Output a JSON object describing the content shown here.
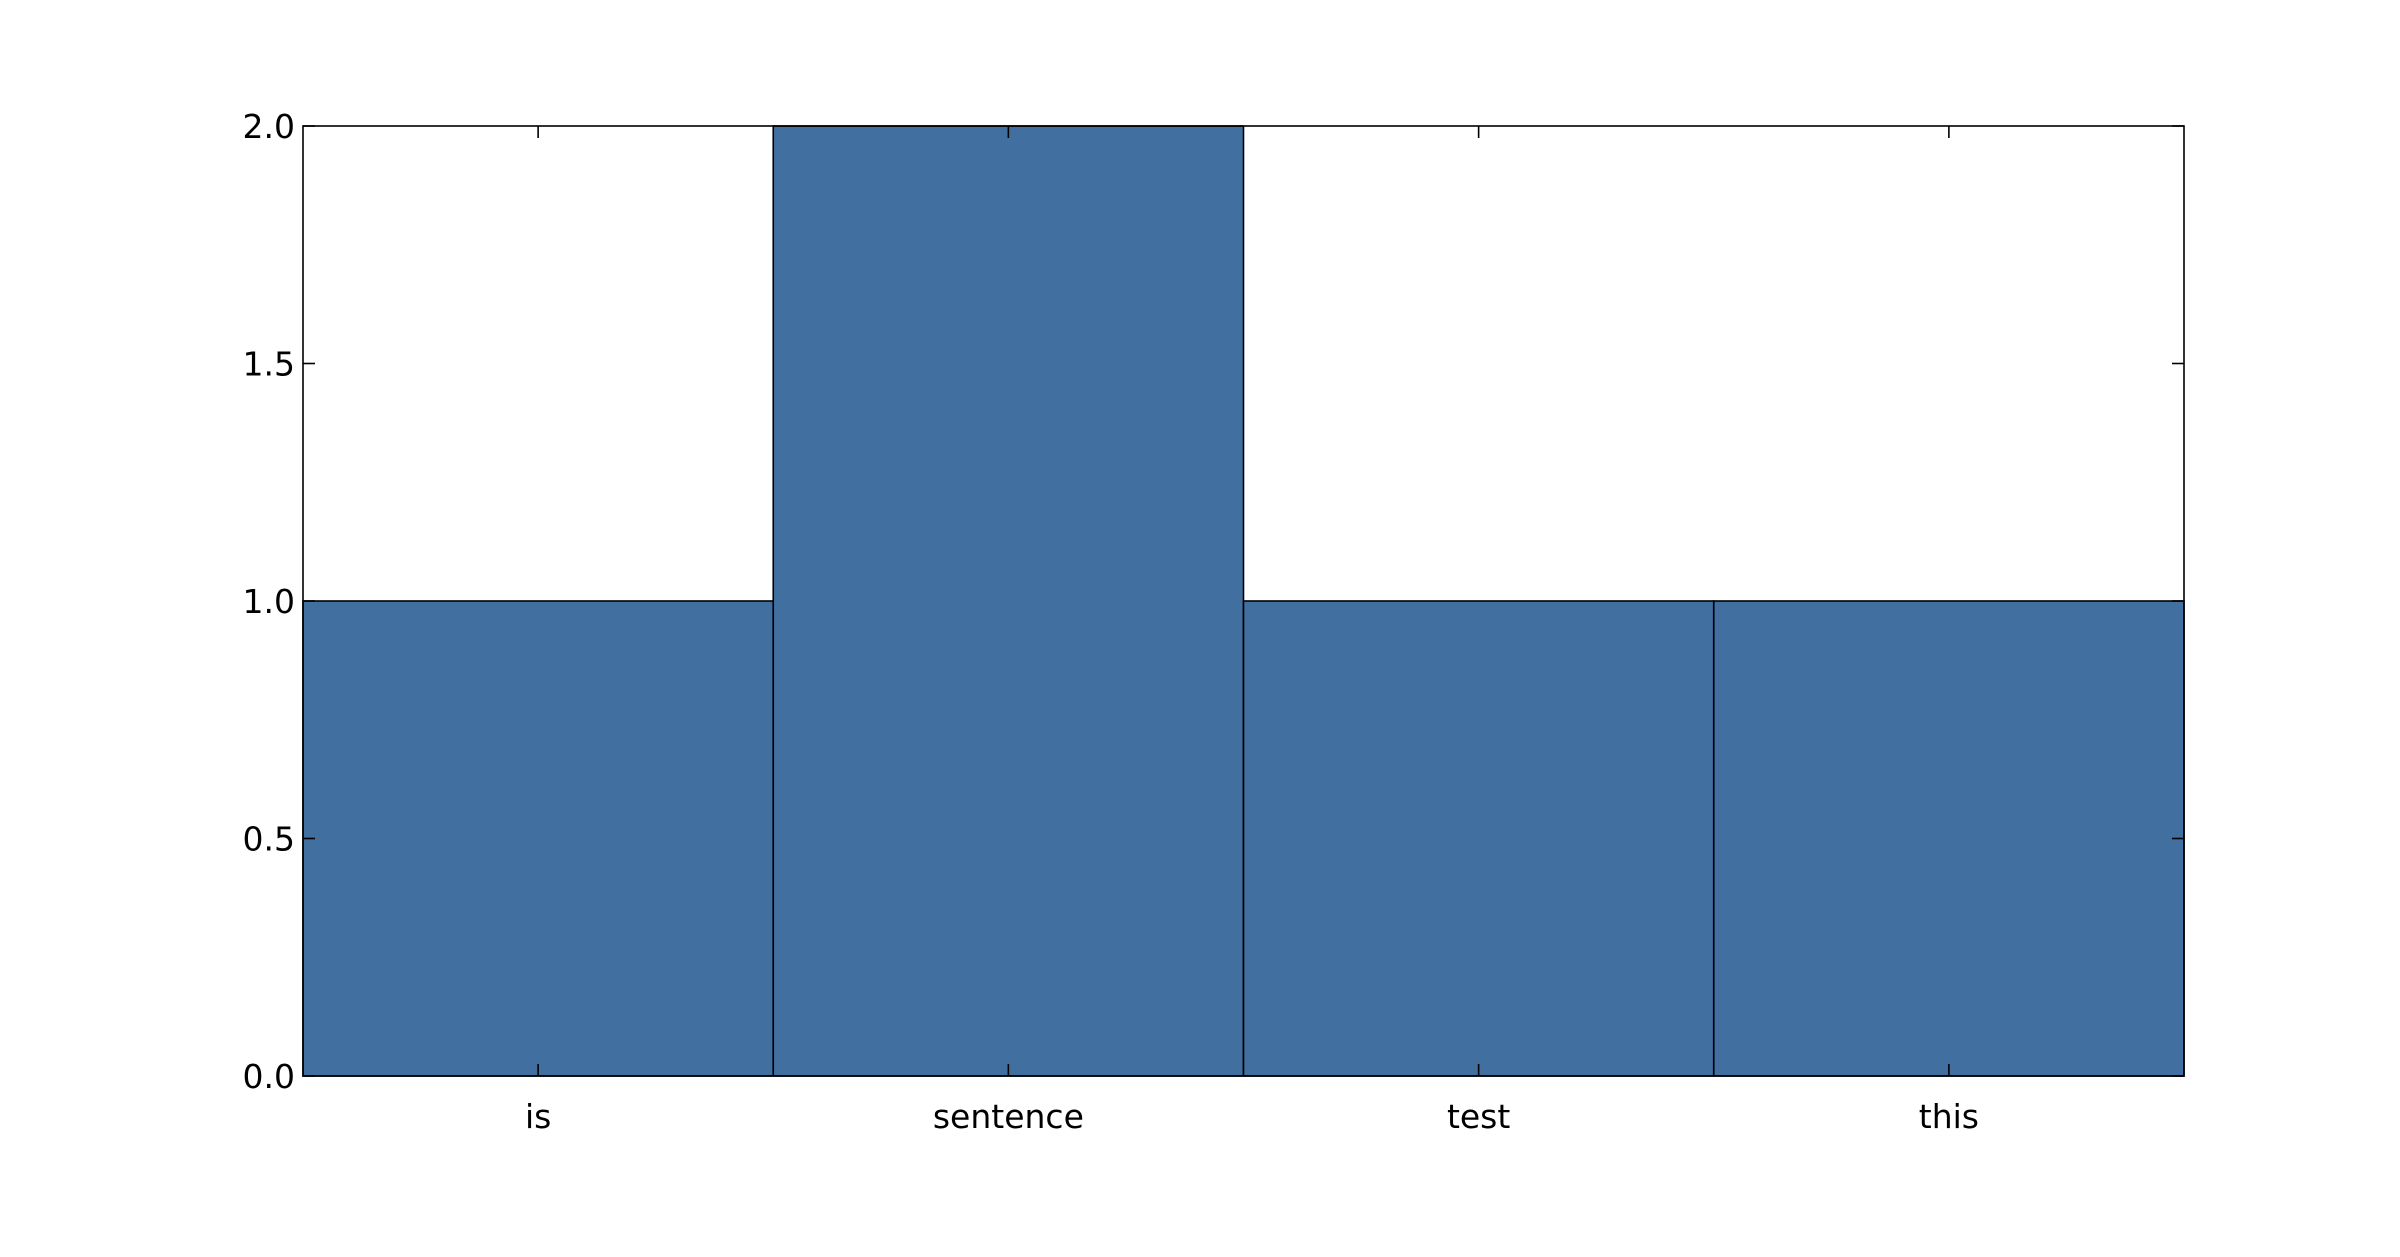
{
  "chart_data": {
    "type": "bar",
    "categories": [
      "is",
      "sentence",
      "test",
      "this"
    ],
    "values": [
      1,
      2,
      1,
      1
    ],
    "title": "",
    "xlabel": "",
    "ylabel": "",
    "ylim": [
      0,
      2.0
    ],
    "yticks": [
      "0.0",
      "0.5",
      "1.0",
      "1.5",
      "2.0"
    ],
    "grid": false,
    "legend": "none",
    "colors": {
      "bar": "#4170a0",
      "edge": "#000000"
    }
  }
}
